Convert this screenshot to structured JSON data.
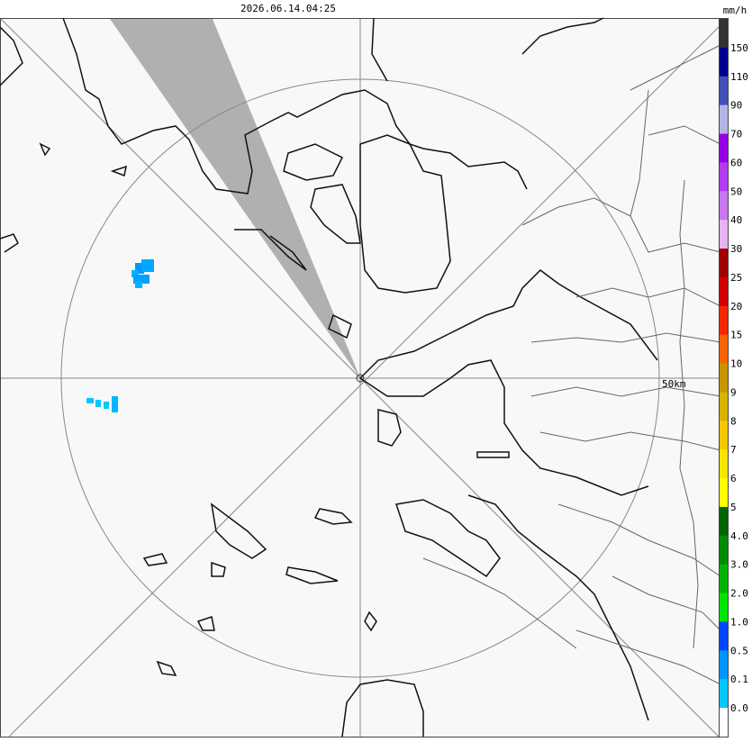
{
  "header": {
    "timestamp": "2026.06.14.04:25",
    "unit": "mm/h"
  },
  "map": {
    "range_label": "50km"
  },
  "legend": {
    "labels": [
      "150",
      "110",
      "90",
      "70",
      "60",
      "50",
      "40",
      "30",
      "25",
      "20",
      "15",
      "10",
      "9",
      "8",
      "7",
      "6",
      "5",
      "4.0",
      "3.0",
      "2.0",
      "1.0",
      "0.5",
      "0.1",
      "0.0"
    ],
    "colors": [
      "#333333",
      "#000090",
      "#4050b8",
      "#b4b4e4",
      "#9600e6",
      "#b43cf0",
      "#c878f0",
      "#e6b4f0",
      "#a00000",
      "#d20000",
      "#f52800",
      "#f56400",
      "#c89600",
      "#d7b400",
      "#f5c800",
      "#f5e600",
      "#ffff00",
      "#006400",
      "#008c00",
      "#00b400",
      "#00e600",
      "#0046ff",
      "#0096ff",
      "#00c8ff",
      "#ffffff"
    ]
  }
}
